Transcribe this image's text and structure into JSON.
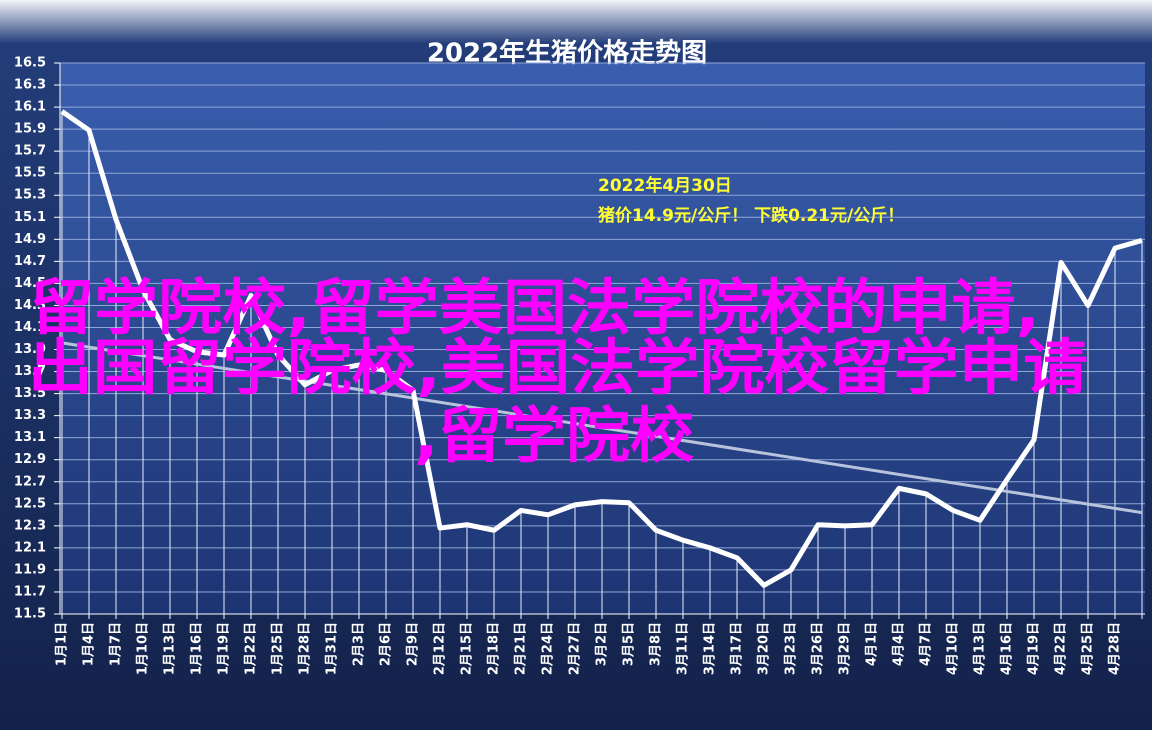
{
  "chart_data": {
    "type": "line",
    "title": "2022年生猪价格走势图",
    "categories": [
      "1月1日",
      "1月4日",
      "1月7日",
      "1月10日",
      "1月13日",
      "1月16日",
      "1月19日",
      "1月22日",
      "1月25日",
      "1月28日",
      "1月31日",
      "2月3日",
      "2月6日",
      "2月9日",
      "2月12日",
      "2月15日",
      "2月18日",
      "2月21日",
      "2月24日",
      "2月27日",
      "3月2日",
      "3月5日",
      "3月8日",
      "3月11日",
      "3月14日",
      "3月17日",
      "3月20日",
      "3月23日",
      "3月26日",
      "3月29日",
      "4月1日",
      "4月4日",
      "4月7日",
      "4月10日",
      "4月13日",
      "4月16日",
      "4月19日",
      "4月22日",
      "4月25日",
      "4月28日",
      null
    ],
    "values": [
      16.06,
      15.89,
      15.08,
      14.44,
      13.99,
      13.88,
      13.85,
      14.39,
      13.85,
      13.58,
      13.71,
      13.76,
      13.71,
      13.53,
      12.28,
      12.31,
      12.26,
      12.44,
      12.4,
      12.49,
      12.52,
      12.51,
      12.26,
      12.17,
      12.1,
      12.01,
      11.76,
      11.9,
      12.31,
      12.3,
      12.31,
      12.64,
      12.59,
      12.44,
      12.35,
      12.72,
      13.08,
      14.69,
      14.3,
      14.82,
      14.89
    ],
    "color": "#ffffff",
    "trendline": {
      "values": [
        13.96,
        12.42
      ],
      "color": "#b8c4dc"
    },
    "ylim": [
      11.5,
      16.5
    ],
    "yticks": [
      11.5,
      11.7,
      11.9,
      12.1,
      12.3,
      12.5,
      12.7,
      12.9,
      13.1,
      13.3,
      13.5,
      13.7,
      13.9,
      14.1,
      14.3,
      14.5,
      14.7,
      14.9,
      15.1,
      15.3,
      15.5,
      15.7,
      15.9,
      16.1,
      16.3,
      16.5
    ],
    "grid": true,
    "annotation": [
      "2022年4月30日",
      "猪价14.9元/公斤！ 下跌0.21元/公斤！"
    ],
    "annotation_color": "#ffff33",
    "overlay_text": [
      "留学院校,留学美国法学院校的申请,",
      "出国留学院校,美国法学院校留学申请",
      ",留学院校"
    ],
    "overlay_color": "#ff00ff"
  }
}
